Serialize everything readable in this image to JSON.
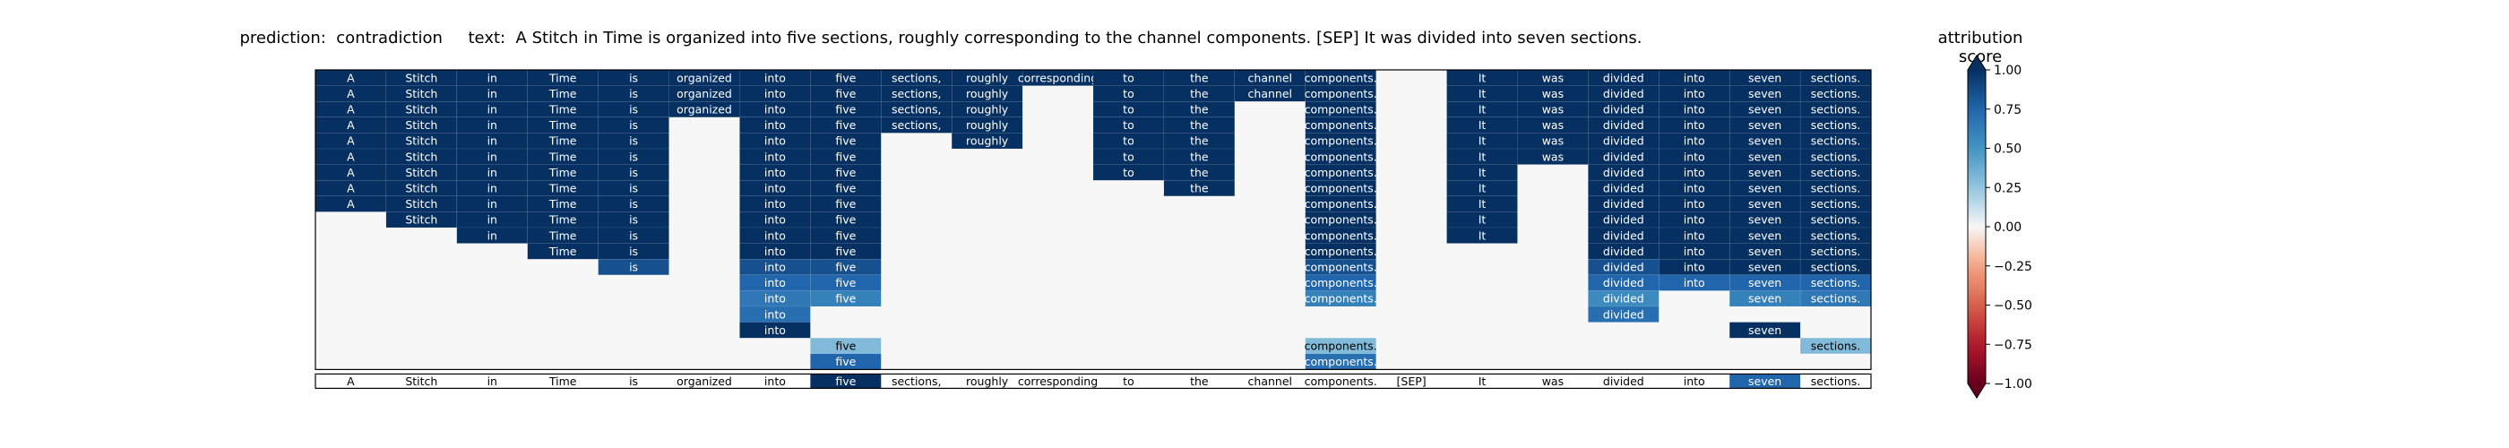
{
  "chart_data": {
    "type": "heatmap",
    "title": "prediction:  contradiction     text:  A Stitch in Time is organized into five sections, roughly corresponding to the channel components. [SEP] It was divided into seven sections.",
    "tokens": [
      "A",
      "Stitch",
      "in",
      "Time",
      "is",
      "organized",
      "into",
      "five",
      "sections,",
      "roughly",
      "corresponding",
      "to",
      "the",
      "channel",
      "components.",
      "[SEP]",
      "It",
      "was",
      "divided",
      "into",
      "seven",
      "sections."
    ],
    "bottom_row_values": [
      0,
      0,
      0,
      0,
      0,
      0,
      0,
      1.0,
      0,
      0,
      0,
      0,
      0,
      0,
      0,
      0,
      0,
      0,
      0,
      0,
      0.75,
      0
    ],
    "rows": [
      [
        1,
        1,
        1,
        1,
        1,
        1,
        1,
        1,
        1,
        1,
        1,
        1,
        1,
        1,
        1,
        0,
        1,
        1,
        1,
        1,
        1,
        1
      ],
      [
        1,
        1,
        1,
        1,
        1,
        1,
        1,
        1,
        1,
        1,
        0,
        1,
        1,
        1,
        1,
        0,
        1,
        1,
        1,
        1,
        1,
        1
      ],
      [
        1,
        1,
        1,
        1,
        1,
        1,
        1,
        1,
        1,
        1,
        0,
        1,
        1,
        0,
        1,
        0,
        1,
        1,
        1,
        1,
        1,
        1
      ],
      [
        1,
        1,
        1,
        1,
        1,
        0,
        1,
        1,
        1,
        1,
        0,
        1,
        1,
        0,
        1,
        0,
        1,
        1,
        1,
        1,
        1,
        1
      ],
      [
        1,
        1,
        1,
        1,
        1,
        0,
        1,
        1,
        0,
        1,
        0,
        1,
        1,
        0,
        1,
        0,
        1,
        1,
        1,
        1,
        1,
        1
      ],
      [
        1,
        1,
        1,
        1,
        1,
        0,
        1,
        1,
        0,
        0,
        0,
        1,
        1,
        0,
        1,
        0,
        1,
        1,
        1,
        1,
        1,
        1
      ],
      [
        1,
        1,
        1,
        1,
        1,
        0,
        1,
        1,
        0,
        0,
        0,
        1,
        1,
        0,
        1,
        0,
        1,
        0,
        1,
        1,
        1,
        1
      ],
      [
        1,
        1,
        1,
        1,
        1,
        0,
        1,
        1,
        0,
        0,
        0,
        0,
        1,
        0,
        1,
        0,
        1,
        0,
        1,
        1,
        1,
        1
      ],
      [
        1,
        1,
        1,
        1,
        1,
        0,
        1,
        1,
        0,
        0,
        0,
        0,
        0,
        0,
        1,
        0,
        1,
        0,
        1,
        1,
        1,
        1
      ],
      [
        0,
        1,
        1,
        1,
        1,
        0,
        1,
        1,
        0,
        0,
        0,
        0,
        0,
        0,
        1,
        0,
        1,
        0,
        1,
        1,
        1,
        1
      ],
      [
        0,
        0,
        1,
        1,
        1,
        0,
        1,
        1,
        0,
        0,
        0,
        0,
        0,
        0,
        1,
        0,
        1,
        0,
        1,
        1,
        1,
        1
      ],
      [
        0,
        0,
        0,
        1,
        1,
        0,
        1,
        1,
        0,
        0,
        0,
        0,
        0,
        0,
        1,
        0,
        0,
        0,
        1,
        1,
        1,
        1
      ],
      [
        0,
        0,
        0,
        0,
        0.85,
        0,
        0.85,
        0.85,
        0,
        0,
        0,
        0,
        0,
        0,
        0.85,
        0,
        0,
        0,
        0.85,
        1,
        1,
        1
      ],
      [
        0,
        0,
        0,
        0,
        0,
        0,
        0.75,
        0.75,
        0,
        0,
        0,
        0,
        0,
        0,
        0.75,
        0,
        0,
        0,
        0.75,
        0.75,
        0.75,
        0.75
      ],
      [
        0,
        0,
        0,
        0,
        0,
        0,
        0.65,
        0.6,
        0,
        0,
        0,
        0,
        0,
        0,
        0.6,
        0,
        0,
        0,
        0.55,
        0,
        0.6,
        0.65
      ],
      [
        0,
        0,
        0,
        0,
        0,
        0,
        0.7,
        0,
        0,
        0,
        0,
        0,
        0,
        0,
        0,
        0,
        0,
        0,
        0.7,
        0,
        0,
        0
      ],
      [
        0,
        0,
        0,
        0,
        0,
        0,
        1,
        0,
        0,
        0,
        0,
        0,
        0,
        0,
        0,
        0,
        0,
        0,
        0,
        0,
        1,
        0
      ],
      [
        0,
        0,
        0,
        0,
        0,
        0,
        0,
        0.3,
        0,
        0,
        0,
        0,
        0,
        0,
        0.3,
        0,
        0,
        0,
        0,
        0,
        0,
        0.3
      ],
      [
        0,
        0,
        0,
        0,
        0,
        0,
        0,
        0.75,
        0,
        0,
        0,
        0,
        0,
        0,
        0.7,
        0,
        0,
        0,
        0,
        0,
        0,
        0
      ]
    ],
    "colorbar": {
      "label": "attribution score",
      "range": [
        -1.0,
        1.0
      ],
      "ticks": [
        1.0,
        0.75,
        0.5,
        0.25,
        0.0,
        -0.25,
        -0.5,
        -0.75,
        -1.0
      ],
      "tick_labels": [
        "1.00",
        "0.75",
        "0.50",
        "0.25",
        "0.00",
        "−0.25",
        "−0.50",
        "−0.75",
        "−1.00"
      ],
      "colormap": "RdBu"
    }
  }
}
